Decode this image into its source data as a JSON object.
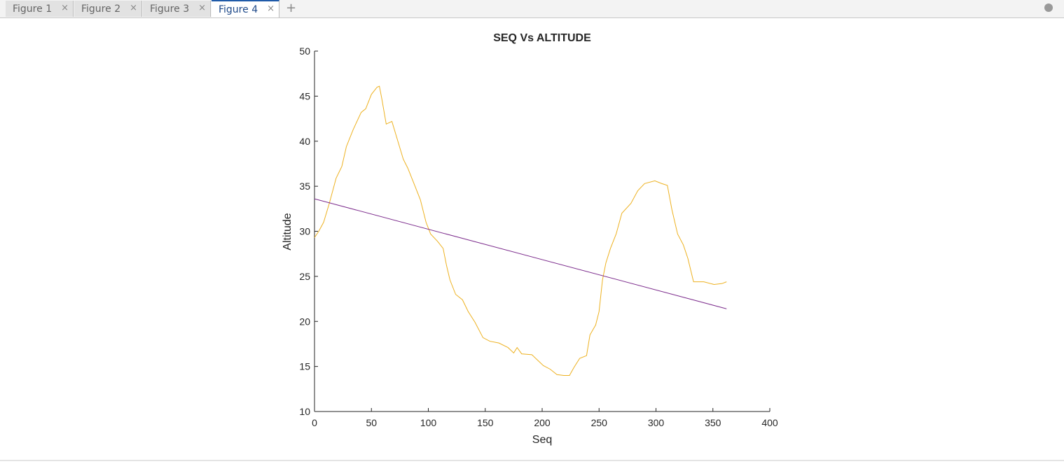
{
  "tabs": [
    "Figure 1",
    "Figure 2",
    "Figure 3",
    "Figure 4"
  ],
  "chart_data": {
    "type": "line",
    "title": "SEQ Vs ALTITUDE",
    "xlabel": "Seq",
    "ylabel": "Altitude",
    "xlim": [
      0,
      400
    ],
    "ylim": [
      10,
      50
    ],
    "xticks": [
      0,
      50,
      100,
      150,
      200,
      250,
      300,
      350,
      400
    ],
    "yticks": [
      10,
      15,
      20,
      25,
      30,
      35,
      40,
      45,
      50
    ],
    "grid": false,
    "series": [
      {
        "color": "#edb120",
        "x": [
          0,
          3.7,
          8,
          13,
          19,
          24,
          28,
          34,
          41,
          45,
          50,
          55,
          57,
          59,
          63,
          68,
          73,
          78,
          82,
          88,
          93,
          98,
          102,
          108,
          113,
          116,
          119,
          124,
          130,
          135,
          141,
          148,
          154,
          162,
          170,
          175,
          178,
          182,
          191,
          196,
          201,
          207,
          213,
          219,
          224,
          228,
          233,
          239,
          242,
          247,
          250,
          253,
          256,
          260,
          265,
          270,
          278,
          284,
          290,
          299,
          305,
          310,
          314,
          319,
          324,
          328,
          333,
          342,
          351,
          358,
          362
        ],
        "values": [
          29.3,
          30,
          31,
          33.1,
          35.9,
          37.2,
          39.4,
          41.3,
          43.2,
          43.6,
          45.2,
          46.0,
          46.1,
          44.8,
          41.9,
          42.2,
          40.1,
          38.0,
          37.0,
          35.1,
          33.5,
          31.0,
          29.7,
          28.9,
          28.1,
          26.2,
          24.6,
          23.0,
          22.4,
          21.1,
          19.9,
          18.2,
          17.8,
          17.6,
          17.1,
          16.5,
          17.1,
          16.4,
          16.3,
          15.7,
          15.1,
          14.7,
          14.1,
          14.0,
          14.0,
          14.9,
          15.9,
          16.2,
          18.5,
          19.6,
          21.1,
          24.6,
          26.5,
          28.1,
          29.7,
          32.0,
          33.1,
          34.5,
          35.3,
          35.6,
          35.3,
          35.1,
          32.4,
          29.7,
          28.5,
          27.0,
          24.4,
          24.4,
          24.1,
          24.2,
          24.4
        ]
      },
      {
        "color": "#7e2f8e",
        "x": [
          0,
          362
        ],
        "values": [
          33.6,
          21.4
        ]
      }
    ]
  }
}
